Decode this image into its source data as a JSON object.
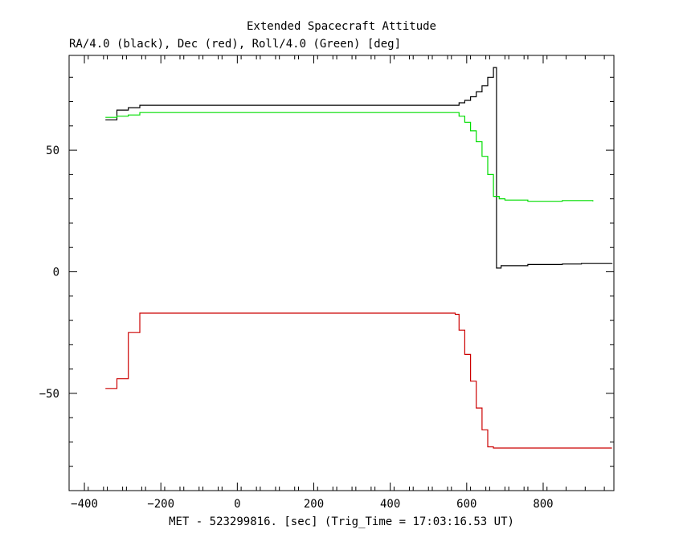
{
  "chart_data": {
    "type": "line",
    "title": "Extended Spacecraft Attitude",
    "subtitle": "RA/4.0 (black), Dec (red), Roll/4.0 (Green) [deg]",
    "xlabel": "MET - 523299816. [sec] (Trig_Time = 17:03:16.53 UT)",
    "ylabel": "",
    "xlim": [
      -440,
      985
    ],
    "ylim": [
      -90,
      89
    ],
    "x_ticks": [
      -400,
      -200,
      0,
      200,
      400,
      600,
      800
    ],
    "y_ticks": [
      -50,
      0,
      50
    ],
    "x_tick_labels": [
      "−400",
      "−200",
      "0",
      "200",
      "400",
      "600",
      "800"
    ],
    "y_tick_labels": [
      "−50",
      "0",
      "50"
    ],
    "grid": false,
    "step": true,
    "series": [
      {
        "color": "#000000",
        "points": [
          [
            -345,
            62.5
          ],
          [
            -315,
            66.5
          ],
          [
            -285,
            67.5
          ],
          [
            -255,
            68.5
          ],
          [
            580,
            69.5
          ],
          [
            595,
            70.5
          ],
          [
            610,
            72
          ],
          [
            625,
            74
          ],
          [
            640,
            76.5
          ],
          [
            655,
            80
          ],
          [
            670,
            84
          ],
          [
            678,
            84
          ],
          [
            678,
            1.5
          ],
          [
            690,
            2.5
          ],
          [
            760,
            3
          ],
          [
            850,
            3.2
          ],
          [
            900,
            3.4
          ],
          [
            980,
            3.5
          ]
        ]
      },
      {
        "color": "#00dd00",
        "points": [
          [
            -345,
            63.5
          ],
          [
            -315,
            64
          ],
          [
            -285,
            64.5
          ],
          [
            -255,
            65.5
          ],
          [
            580,
            64
          ],
          [
            595,
            61.5
          ],
          [
            610,
            58
          ],
          [
            625,
            53.5
          ],
          [
            640,
            47.5
          ],
          [
            655,
            40
          ],
          [
            670,
            31
          ],
          [
            685,
            30
          ],
          [
            700,
            29.5
          ],
          [
            760,
            29
          ],
          [
            850,
            29.3
          ],
          [
            930,
            29
          ]
        ]
      },
      {
        "color": "#cc0000",
        "points": [
          [
            -345,
            -48
          ],
          [
            -315,
            -44
          ],
          [
            -285,
            -25
          ],
          [
            -255,
            -17
          ],
          [
            570,
            -17.5
          ],
          [
            580,
            -24
          ],
          [
            595,
            -34
          ],
          [
            610,
            -45
          ],
          [
            625,
            -56
          ],
          [
            640,
            -65
          ],
          [
            655,
            -72
          ],
          [
            670,
            -72.5
          ],
          [
            680,
            -72.5
          ],
          [
            980,
            -72.5
          ]
        ]
      }
    ]
  }
}
